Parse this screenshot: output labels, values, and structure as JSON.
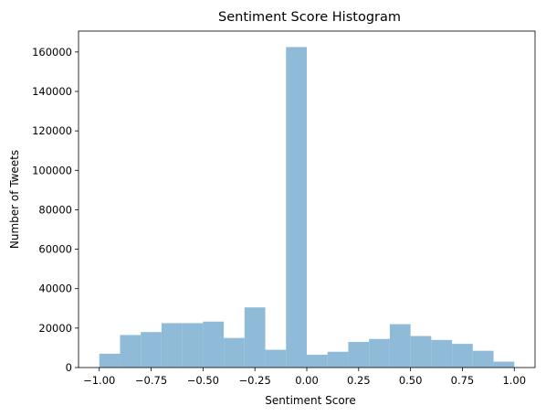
{
  "chart_data": {
    "type": "bar",
    "title": "Sentiment Score Histogram",
    "xlabel": "Sentiment Score",
    "ylabel": "Number of Tweets",
    "bin_edges": [
      -1.0,
      -0.9,
      -0.8,
      -0.7,
      -0.6,
      -0.5,
      -0.4,
      -0.3,
      -0.2,
      -0.1,
      0.0,
      0.1,
      0.2,
      0.3,
      0.4,
      0.5,
      0.6,
      0.7,
      0.8,
      0.9,
      1.0
    ],
    "values": [
      7000,
      16500,
      18000,
      22500,
      22500,
      23300,
      15000,
      30500,
      9000,
      162500,
      6500,
      8000,
      13000,
      14500,
      22000,
      16000,
      14000,
      12000,
      8500,
      3000
    ],
    "xlim": [
      -1.1,
      1.1
    ],
    "ylim": [
      0,
      170600
    ],
    "xticks": [
      -1.0,
      -0.75,
      -0.5,
      -0.25,
      0.0,
      0.25,
      0.5,
      0.75,
      1.0
    ],
    "xtick_labels": [
      "−1.00",
      "−0.75",
      "−0.50",
      "−0.25",
      "0.00",
      "0.25",
      "0.50",
      "0.75",
      "1.00"
    ],
    "yticks": [
      0,
      20000,
      40000,
      60000,
      80000,
      100000,
      120000,
      140000,
      160000
    ],
    "ytick_labels": [
      "0",
      "20000",
      "40000",
      "60000",
      "80000",
      "100000",
      "120000",
      "140000",
      "160000"
    ],
    "bar_color": "#8fbbd9",
    "grid": false,
    "legend": "none"
  }
}
